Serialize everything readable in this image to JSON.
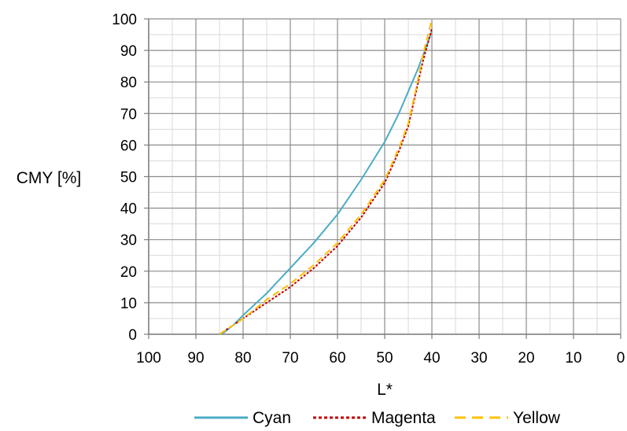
{
  "chart_data": {
    "type": "line",
    "xlabel": "L*",
    "ylabel": "CMY [%]",
    "xlim": [
      100,
      0
    ],
    "ylim": [
      0,
      100
    ],
    "x_reversed": true,
    "x_ticks": [
      "100",
      "90",
      "80",
      "70",
      "60",
      "50",
      "40",
      "30",
      "20",
      "10",
      "0"
    ],
    "y_ticks": [
      "0",
      "10",
      "20",
      "30",
      "40",
      "50",
      "60",
      "70",
      "80",
      "90",
      "100"
    ],
    "grid": true,
    "minor_grid": true,
    "legend_position": "bottom",
    "series": [
      {
        "name": "Cyan",
        "color": "#4BACC6",
        "dash": "solid",
        "points": [
          [
            84.5,
            0
          ],
          [
            82,
            3
          ],
          [
            80,
            6
          ],
          [
            75,
            13
          ],
          [
            70,
            21
          ],
          [
            65,
            29
          ],
          [
            60,
            38
          ],
          [
            55,
            49
          ],
          [
            50,
            61
          ],
          [
            47,
            70
          ],
          [
            45,
            77
          ],
          [
            43,
            84
          ],
          [
            41.5,
            90
          ],
          [
            40,
            96
          ]
        ]
      },
      {
        "name": "Magenta",
        "color": "#C00000",
        "dash": "dotted",
        "points": [
          [
            85,
            0
          ],
          [
            82,
            3
          ],
          [
            80,
            5
          ],
          [
            75,
            10
          ],
          [
            70,
            15
          ],
          [
            65,
            21
          ],
          [
            60,
            28
          ],
          [
            55,
            37
          ],
          [
            50,
            48
          ],
          [
            47,
            58
          ],
          [
            45,
            66
          ],
          [
            43.5,
            76
          ],
          [
            42,
            86
          ],
          [
            40,
            97
          ]
        ]
      },
      {
        "name": "Yellow",
        "color": "#FFC000",
        "dash": "dashed",
        "points": [
          [
            85,
            0
          ],
          [
            82,
            3
          ],
          [
            80,
            5
          ],
          [
            75,
            11
          ],
          [
            70,
            16
          ],
          [
            65,
            22
          ],
          [
            60,
            29
          ],
          [
            55,
            38
          ],
          [
            50,
            49
          ],
          [
            47,
            59
          ],
          [
            45,
            67
          ],
          [
            43.5,
            77
          ],
          [
            42,
            88
          ],
          [
            40,
            100
          ]
        ]
      }
    ]
  }
}
